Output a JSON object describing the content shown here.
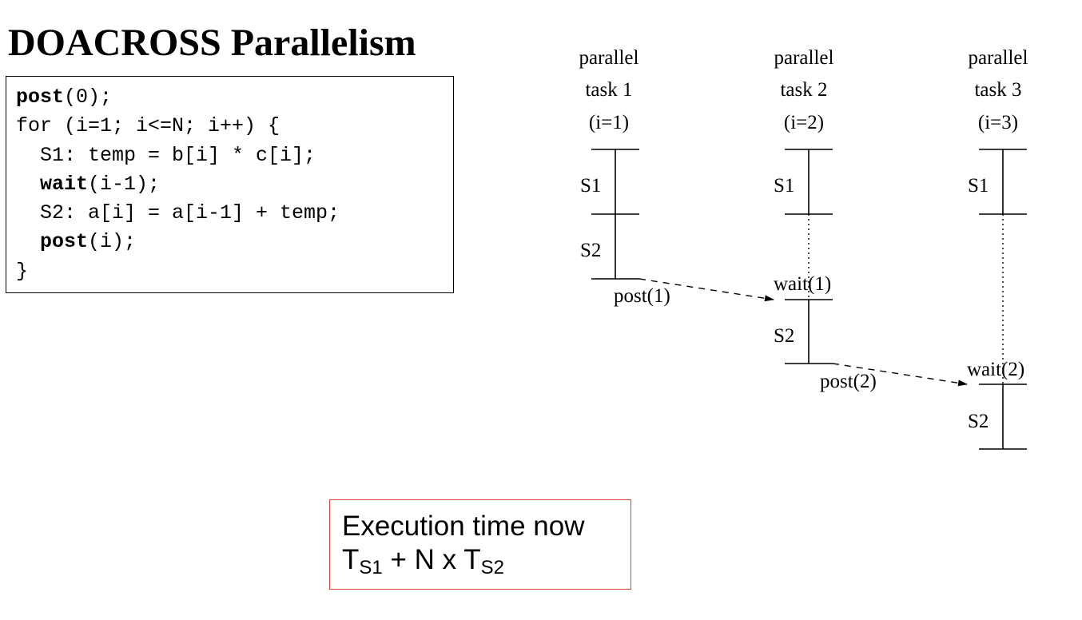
{
  "title": "DOACROSS Parallelism",
  "code": {
    "l1_kw": "post",
    "l1_rest": "(0);",
    "l2": "for (i=1; i<=N; i++) {",
    "l3": "  S1: temp = b[i] * c[i];",
    "l4_indent": "  ",
    "l4_kw": "wait",
    "l4_rest": "(i-1);",
    "l5": "  S2: a[i] = a[i-1] + temp;",
    "l6_indent": "  ",
    "l6_kw": "post",
    "l6_rest": "(i);",
    "l7": "}"
  },
  "tasks": [
    {
      "line1": "parallel",
      "line2": "task 1",
      "line3": "(i=1)",
      "s1": "S1",
      "s2": "S2"
    },
    {
      "line1": "parallel",
      "line2": "task 2",
      "line3": "(i=2)",
      "s1": "S1",
      "s2": "S2",
      "wait": "wait(1)"
    },
    {
      "line1": "parallel",
      "line2": "task 3",
      "line3": "(i=3)",
      "s1": "S1",
      "s2": "S2",
      "wait": "wait(2)"
    }
  ],
  "posts": [
    "post(1)",
    "post(2)"
  ],
  "result": {
    "line1": "Execution time now",
    "t1": "T",
    "sub1": "S1",
    "mid": " + N x ",
    "t2": "T",
    "sub2": "S2"
  }
}
